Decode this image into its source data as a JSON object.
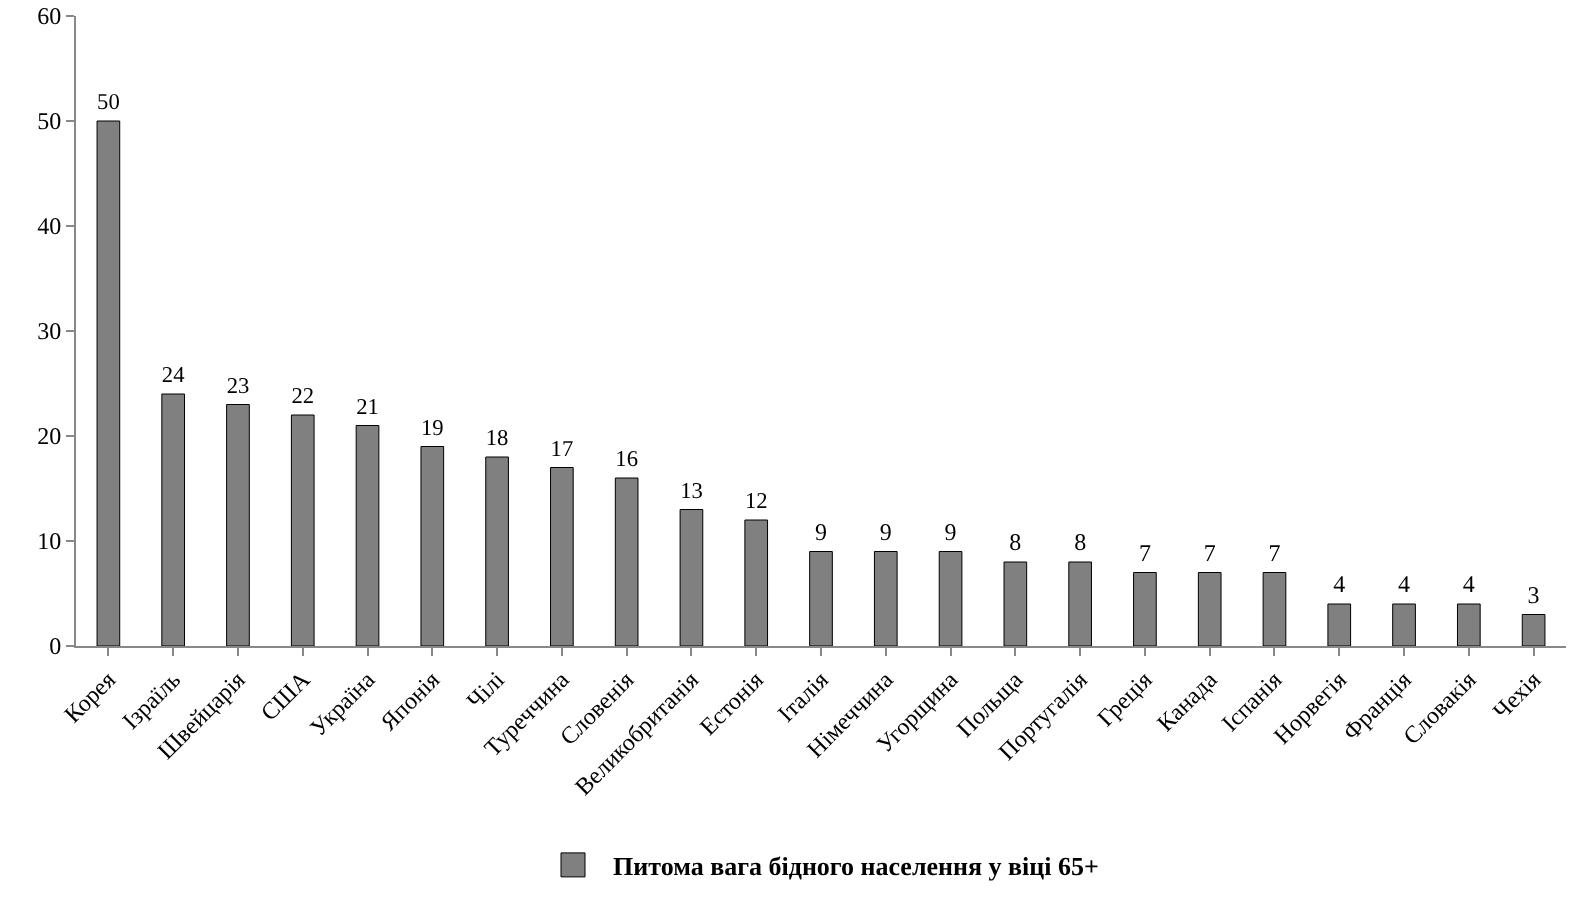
{
  "chart_data": {
    "type": "bar",
    "categories": [
      "Корея",
      "Ізраїль",
      "Швейцарія",
      "США",
      "Україна",
      "Японія",
      "Чілі",
      "Туреччина",
      "Словенія",
      "Великобританія",
      "Естонія",
      "Італія",
      "Німеччина",
      "Угорщина",
      "Польща",
      "Португалія",
      "Греція",
      "Канада",
      "Іспанія",
      "Норвегія",
      "Франція",
      "Словакія",
      "Чехія"
    ],
    "series": [
      {
        "name": "Питома вага бідного населення у віці 65+",
        "color": "#808080",
        "values": [
          50,
          24,
          23,
          22,
          21,
          19,
          18,
          17,
          16,
          13,
          12,
          9,
          9,
          9,
          8,
          8,
          7,
          7,
          7,
          4,
          4,
          4,
          3
        ]
      }
    ],
    "ylim": [
      0,
      60
    ],
    "yticks": [
      0,
      10,
      20,
      30,
      40,
      50,
      60
    ],
    "grid": false,
    "legend": "bottom",
    "data_labels": true
  }
}
